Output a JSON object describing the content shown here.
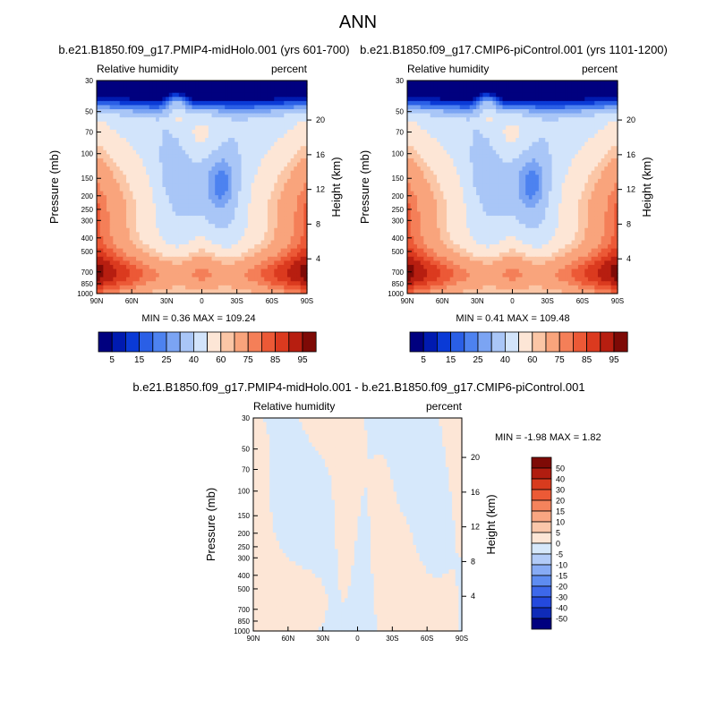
{
  "page_title": "ANN",
  "colors": {
    "palette": [
      "#00007f",
      "#001ab0",
      "#0a3ad6",
      "#2a5fe6",
      "#4d82f0",
      "#7ba4f3",
      "#a9c6f7",
      "#d2e4fb",
      "#fde6d6",
      "#fbc6a6",
      "#f9a47c",
      "#f47f58",
      "#ec5936",
      "#db3a1f",
      "#b71e10",
      "#7e0a06"
    ],
    "diff_palette": [
      "#00007f",
      "#0f2bb8",
      "#2449dd",
      "#3d68ea",
      "#5e8cf1",
      "#87abf5",
      "#b2cbf8",
      "#d6e8fb",
      "#fde6d6",
      "#fbc7aa",
      "#f9a682",
      "#f4835c",
      "#ec5a36",
      "#d83b1e",
      "#b11d10",
      "#7e0a06"
    ]
  },
  "chart_data": [
    {
      "type": "heatmap",
      "panel": "model1",
      "title": "b.e21.B1850.f09_g17.PMIP4-midHolo.001 (yrs 601-700)",
      "left_label": "Relative humidity",
      "right_label": "percent",
      "xlabel": "",
      "ylabel": "Pressure (mb)",
      "ylabel_right": "Height (km)",
      "x_ticks": [
        "90N",
        "60N",
        "30N",
        "0",
        "30S",
        "60S",
        "90S"
      ],
      "y_ticks": [
        30,
        50,
        70,
        100,
        150,
        200,
        250,
        300,
        400,
        500,
        700,
        850,
        1000
      ],
      "y_ticks_right": [
        20,
        16,
        12,
        8,
        4
      ],
      "stats_text": "MIN =   0.36  MAX = 109.24",
      "min": 0.36,
      "max": 109.24
    },
    {
      "type": "heatmap",
      "panel": "model2",
      "title": "b.e21.B1850.f09_g17.CMIP6-piControl.001 (yrs 1101-1200)",
      "left_label": "Relative humidity",
      "right_label": "percent",
      "xlabel": "",
      "ylabel": "Pressure (mb)",
      "ylabel_right": "Height (km)",
      "x_ticks": [
        "90N",
        "60N",
        "30N",
        "0",
        "30S",
        "60S",
        "90S"
      ],
      "y_ticks": [
        30,
        50,
        70,
        100,
        150,
        200,
        250,
        300,
        400,
        500,
        700,
        850,
        1000
      ],
      "y_ticks_right": [
        20,
        16,
        12,
        8,
        4
      ],
      "stats_text": "MIN =   0.41  MAX = 109.48",
      "min": 0.41,
      "max": 109.48
    },
    {
      "type": "heatmap",
      "panel": "difference",
      "title": "b.e21.B1850.f09_g17.PMIP4-midHolo.001 - b.e21.B1850.f09_g17.CMIP6-piControl.001",
      "left_label": "Relative humidity",
      "right_label": "percent",
      "xlabel": "",
      "ylabel": "Pressure (mb)",
      "ylabel_right": "Height (km)",
      "x_ticks": [
        "90N",
        "60N",
        "30N",
        "0",
        "30S",
        "60S",
        "90S"
      ],
      "y_ticks": [
        30,
        50,
        70,
        100,
        150,
        200,
        250,
        300,
        400,
        500,
        700,
        850,
        1000
      ],
      "y_ticks_right": [
        20,
        16,
        12,
        8,
        4
      ],
      "stats_text": "MIN =  -1.98  MAX =   1.82",
      "min": -1.98,
      "max": 1.82
    }
  ],
  "colorbar_main": {
    "labels": [
      "5",
      "15",
      "25",
      "40",
      "60",
      "75",
      "85",
      "95"
    ]
  },
  "colorbar_diff": {
    "labels": [
      "50",
      "40",
      "30",
      "20",
      "15",
      "10",
      "5",
      "0",
      "-5",
      "-10",
      "-15",
      "-20",
      "-30",
      "-40",
      "-50"
    ]
  }
}
